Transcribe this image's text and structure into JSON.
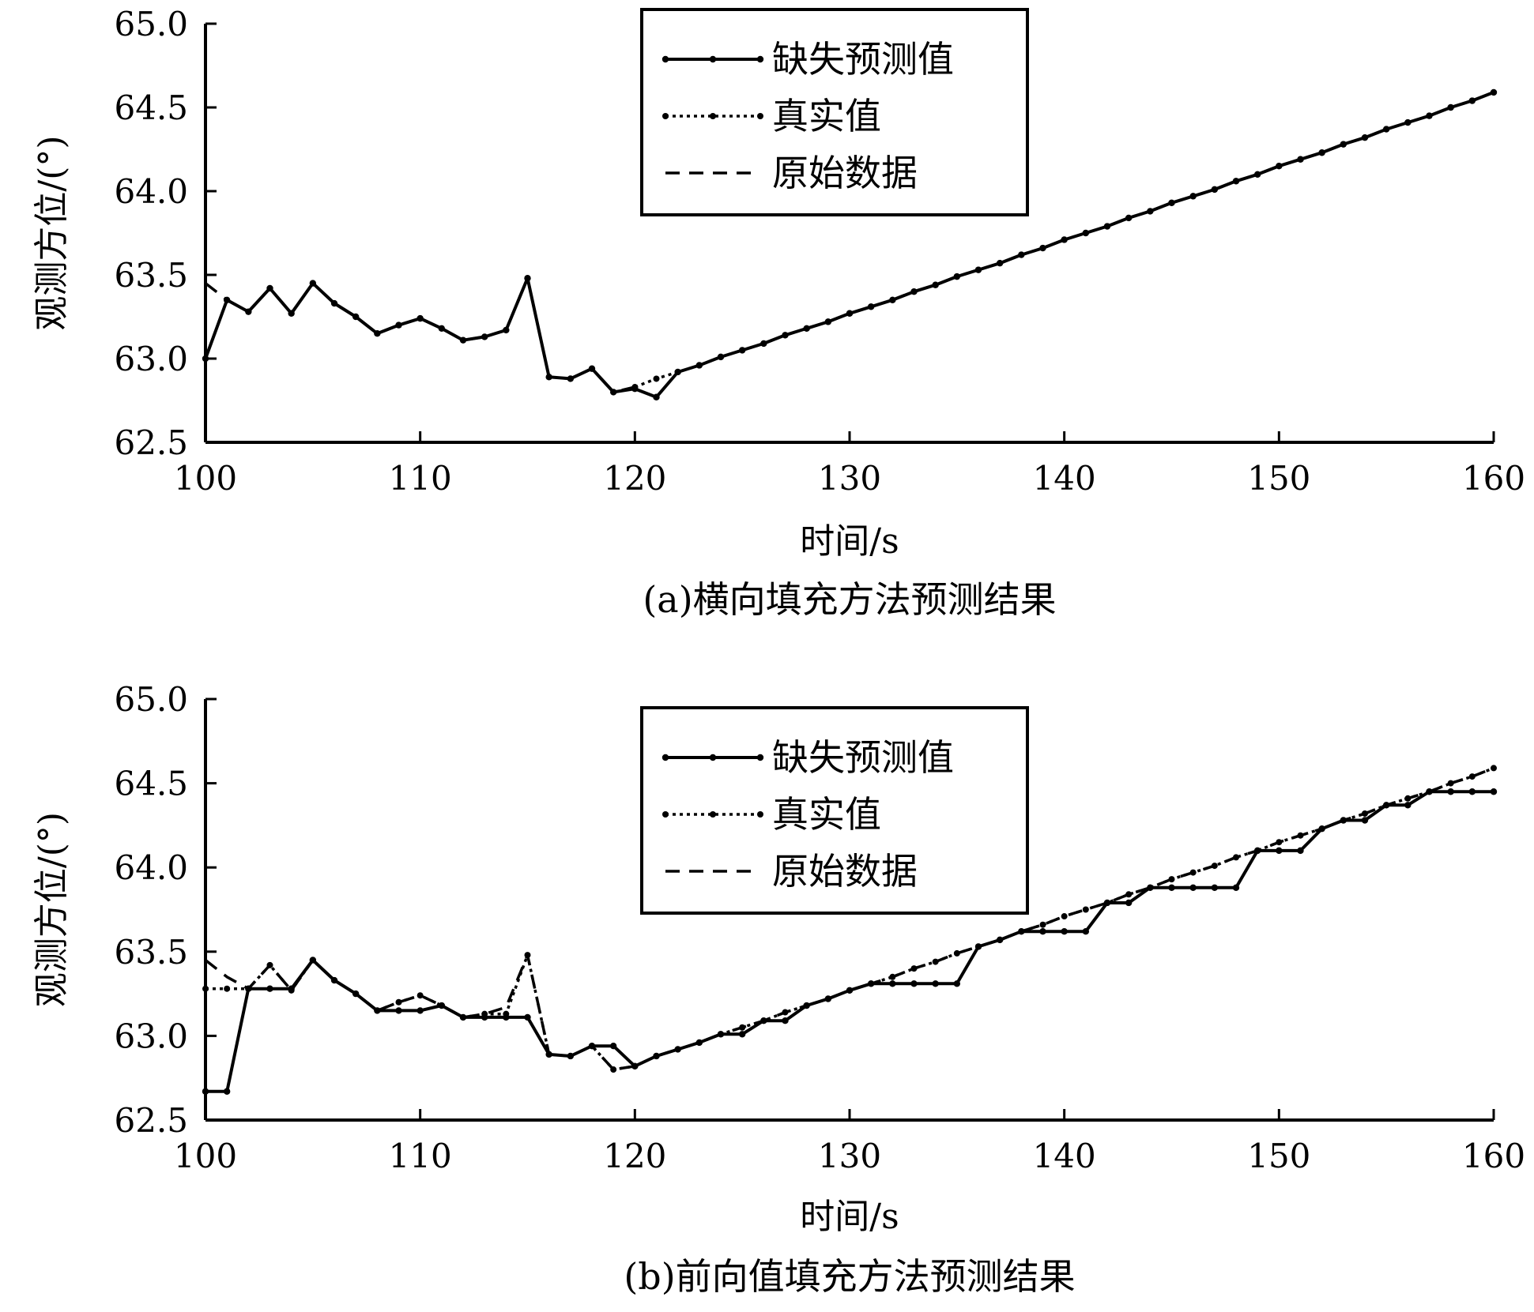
{
  "chart_data": [
    {
      "type": "line",
      "title": "",
      "caption": "(a)横向填充方法预测结果",
      "xlabel": "时间/s",
      "ylabel": "观测方位/(°)",
      "xlim": [
        100,
        160
      ],
      "ylim": [
        62.5,
        65.0
      ],
      "xticks": [
        "100",
        "110",
        "120",
        "130",
        "140",
        "150",
        "160"
      ],
      "yticks": [
        "62.5",
        "63.0",
        "63.5",
        "64.0",
        "64.5",
        "65.0"
      ],
      "legend": {
        "position": "top-center",
        "entries": [
          "缺失预测值",
          "真实值",
          "原始数据"
        ]
      },
      "series": [
        {
          "name": "缺失预测值",
          "style": "solid-marker",
          "x": [
            100,
            101,
            102,
            103,
            104,
            105,
            106,
            107,
            108,
            109,
            110,
            111,
            112,
            113,
            114,
            115,
            116,
            117,
            118,
            119,
            120,
            121,
            122,
            123,
            124,
            125,
            126,
            127,
            128,
            129,
            130,
            131,
            132,
            133,
            134,
            135,
            136,
            137,
            138,
            139,
            140,
            141,
            142,
            143,
            144,
            145,
            146,
            147,
            148,
            149,
            150,
            151,
            152,
            153,
            154,
            155,
            156,
            157,
            158,
            159,
            160
          ],
          "y": [
            63.0,
            63.35,
            63.28,
            63.42,
            63.27,
            63.45,
            63.33,
            63.25,
            63.15,
            63.2,
            63.24,
            63.18,
            63.11,
            63.13,
            63.17,
            63.48,
            62.89,
            62.88,
            62.94,
            62.8,
            62.82,
            62.77,
            62.92,
            62.96,
            63.01,
            63.05,
            63.09,
            63.14,
            63.18,
            63.22,
            63.27,
            63.31,
            63.35,
            63.4,
            63.44,
            63.49,
            63.53,
            63.57,
            63.62,
            63.66,
            63.71,
            63.75,
            63.79,
            63.84,
            63.88,
            63.93,
            63.97,
            64.01,
            64.06,
            64.1,
            64.15,
            64.19,
            64.23,
            64.28,
            64.32,
            64.37,
            64.41,
            64.45,
            64.5,
            64.54,
            64.59
          ]
        },
        {
          "name": "真实值",
          "style": "dotted-marker",
          "x": [
            120,
            121,
            122,
            123,
            124,
            125,
            126,
            127,
            128,
            129,
            130,
            131,
            132,
            133,
            134,
            135,
            136,
            137,
            138,
            139,
            140,
            141,
            142,
            143,
            144,
            145,
            146,
            147,
            148,
            149,
            150,
            151,
            152,
            153,
            154,
            155,
            156,
            157,
            158,
            159,
            160
          ],
          "y": [
            62.83,
            62.88,
            62.92,
            62.96,
            63.01,
            63.05,
            63.09,
            63.14,
            63.18,
            63.22,
            63.27,
            63.31,
            63.35,
            63.4,
            63.44,
            63.49,
            63.53,
            63.57,
            63.62,
            63.66,
            63.71,
            63.75,
            63.79,
            63.84,
            63.88,
            63.93,
            63.97,
            64.01,
            64.06,
            64.1,
            64.15,
            64.19,
            64.23,
            64.28,
            64.32,
            64.37,
            64.41,
            64.45,
            64.5,
            64.54,
            64.59
          ]
        },
        {
          "name": "原始数据",
          "style": "dashed",
          "x": [
            100,
            101,
            102,
            103,
            104,
            105,
            106,
            107,
            108,
            109,
            110,
            111,
            112,
            113,
            114,
            115,
            116,
            117,
            118,
            119,
            120
          ],
          "y": [
            63.45,
            63.35,
            63.28,
            63.42,
            63.27,
            63.45,
            63.33,
            63.25,
            63.15,
            63.2,
            63.24,
            63.18,
            63.11,
            63.13,
            63.17,
            63.48,
            62.89,
            62.88,
            62.94,
            62.8,
            62.83
          ]
        }
      ]
    },
    {
      "type": "line",
      "title": "",
      "caption": "(b)前向值填充方法预测结果",
      "xlabel": "时间/s",
      "ylabel": "观测方位/(°)",
      "xlim": [
        100,
        160
      ],
      "ylim": [
        62.5,
        65.0
      ],
      "xticks": [
        "100",
        "110",
        "120",
        "130",
        "140",
        "150",
        "160"
      ],
      "yticks": [
        "62.5",
        "63.0",
        "63.5",
        "64.0",
        "64.5",
        "65.0"
      ],
      "legend": {
        "position": "top-center",
        "entries": [
          "缺失预测值",
          "真实值",
          "原始数据"
        ]
      },
      "series": [
        {
          "name": "缺失预测值",
          "style": "solid-marker",
          "x": [
            100,
            101,
            102,
            103,
            104,
            105,
            106,
            107,
            108,
            109,
            110,
            111,
            112,
            113,
            114,
            115,
            116,
            117,
            118,
            119,
            120,
            121,
            122,
            123,
            124,
            125,
            126,
            127,
            128,
            129,
            130,
            131,
            132,
            133,
            134,
            135,
            136,
            137,
            138,
            139,
            140,
            141,
            142,
            143,
            144,
            145,
            146,
            147,
            148,
            149,
            150,
            151,
            152,
            153,
            154,
            155,
            156,
            157,
            158,
            159,
            160
          ],
          "y": [
            62.67,
            62.67,
            63.28,
            63.28,
            63.28,
            63.45,
            63.33,
            63.25,
            63.15,
            63.15,
            63.15,
            63.18,
            63.11,
            63.11,
            63.11,
            63.11,
            62.89,
            62.88,
            62.94,
            62.94,
            62.82,
            62.88,
            62.92,
            62.96,
            63.01,
            63.01,
            63.09,
            63.09,
            63.18,
            63.22,
            63.27,
            63.31,
            63.31,
            63.31,
            63.31,
            63.31,
            63.53,
            63.57,
            63.62,
            63.62,
            63.62,
            63.62,
            63.79,
            63.79,
            63.88,
            63.88,
            63.88,
            63.88,
            63.88,
            64.1,
            64.1,
            64.1,
            64.23,
            64.28,
            64.28,
            64.37,
            64.37,
            64.45,
            64.45,
            64.45,
            64.45
          ]
        },
        {
          "name": "真实值",
          "style": "dotted-marker",
          "x": [
            100,
            101,
            102,
            103,
            104,
            105,
            106,
            107,
            108,
            109,
            110,
            111,
            112,
            113,
            114,
            115,
            116,
            117,
            118,
            119,
            120,
            121,
            122,
            123,
            124,
            125,
            126,
            127,
            128,
            129,
            130,
            131,
            132,
            133,
            134,
            135,
            136,
            137,
            138,
            139,
            140,
            141,
            142,
            143,
            144,
            145,
            146,
            147,
            148,
            149,
            150,
            151,
            152,
            153,
            154,
            155,
            156,
            157,
            158,
            159,
            160
          ],
          "y": [
            63.28,
            63.28,
            63.28,
            63.42,
            63.27,
            63.45,
            63.33,
            63.25,
            63.15,
            63.2,
            63.24,
            63.18,
            63.11,
            63.13,
            63.13,
            63.48,
            62.89,
            62.88,
            62.94,
            62.8,
            62.82,
            62.88,
            62.92,
            62.96,
            63.01,
            63.05,
            63.09,
            63.14,
            63.18,
            63.22,
            63.27,
            63.31,
            63.35,
            63.4,
            63.44,
            63.49,
            63.53,
            63.57,
            63.62,
            63.66,
            63.71,
            63.75,
            63.79,
            63.84,
            63.88,
            63.93,
            63.97,
            64.01,
            64.06,
            64.1,
            64.15,
            64.19,
            64.23,
            64.28,
            64.32,
            64.37,
            64.41,
            64.45,
            64.5,
            64.54,
            64.59
          ]
        },
        {
          "name": "原始数据",
          "style": "dashed",
          "x": [
            100,
            101,
            102,
            103,
            104,
            105,
            106,
            107,
            108,
            109,
            110,
            111,
            112,
            113,
            114,
            115,
            116,
            117,
            118,
            119,
            120,
            121,
            122,
            123,
            124,
            125,
            126,
            127,
            128,
            129,
            130,
            131,
            132,
            133,
            134,
            135,
            136,
            137,
            138,
            139,
            140,
            141,
            142,
            143,
            144,
            145,
            146,
            147,
            148,
            149,
            150,
            151,
            152,
            153,
            154,
            155,
            156,
            157,
            158,
            159,
            160
          ],
          "y": [
            63.45,
            63.35,
            63.28,
            63.42,
            63.27,
            63.45,
            63.33,
            63.25,
            63.15,
            63.2,
            63.24,
            63.18,
            63.11,
            63.13,
            63.17,
            63.48,
            62.89,
            62.88,
            62.94,
            62.8,
            62.82,
            62.88,
            62.92,
            62.96,
            63.01,
            63.05,
            63.09,
            63.14,
            63.18,
            63.22,
            63.27,
            63.31,
            63.35,
            63.4,
            63.44,
            63.49,
            63.53,
            63.57,
            63.62,
            63.66,
            63.71,
            63.75,
            63.79,
            63.84,
            63.88,
            63.93,
            63.97,
            64.01,
            64.06,
            64.1,
            64.15,
            64.19,
            64.23,
            64.28,
            64.32,
            64.37,
            64.41,
            64.45,
            64.5,
            64.54,
            64.59
          ]
        }
      ]
    }
  ]
}
